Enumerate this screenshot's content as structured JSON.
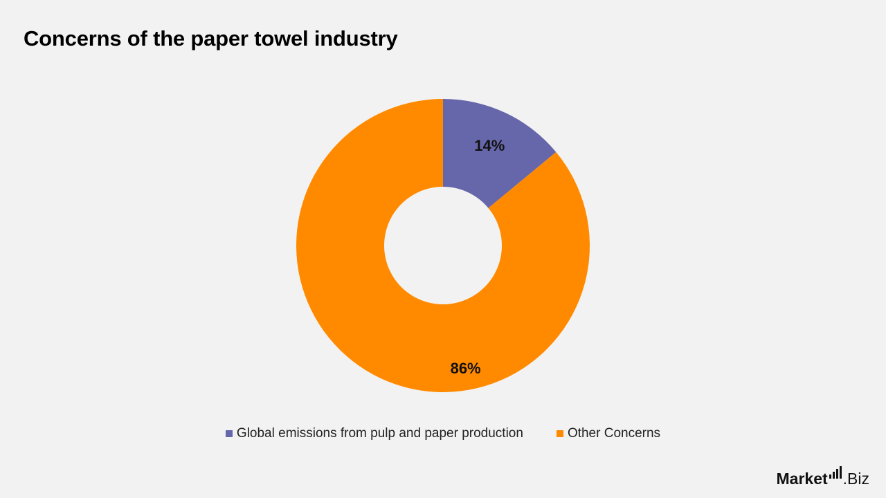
{
  "title": "Concerns of the paper towel industry",
  "chart_data": {
    "type": "pie",
    "variant": "donut",
    "title": "Concerns of the paper towel industry",
    "slices": [
      {
        "label": "Global emissions from pulp and paper production",
        "value": 14,
        "display": "14%",
        "color": "#6666aa"
      },
      {
        "label": "Other Concerns",
        "value": 86,
        "display": "86%",
        "color": "#ff8a00"
      }
    ],
    "legend_position": "bottom"
  },
  "legend": {
    "items": [
      {
        "label": "Global emissions from pulp and paper production",
        "color": "#6666aa"
      },
      {
        "label": "Other Concerns",
        "color": "#ff8a00"
      }
    ]
  },
  "logo": {
    "text_main": "Market",
    "text_suffix": ".Biz"
  }
}
